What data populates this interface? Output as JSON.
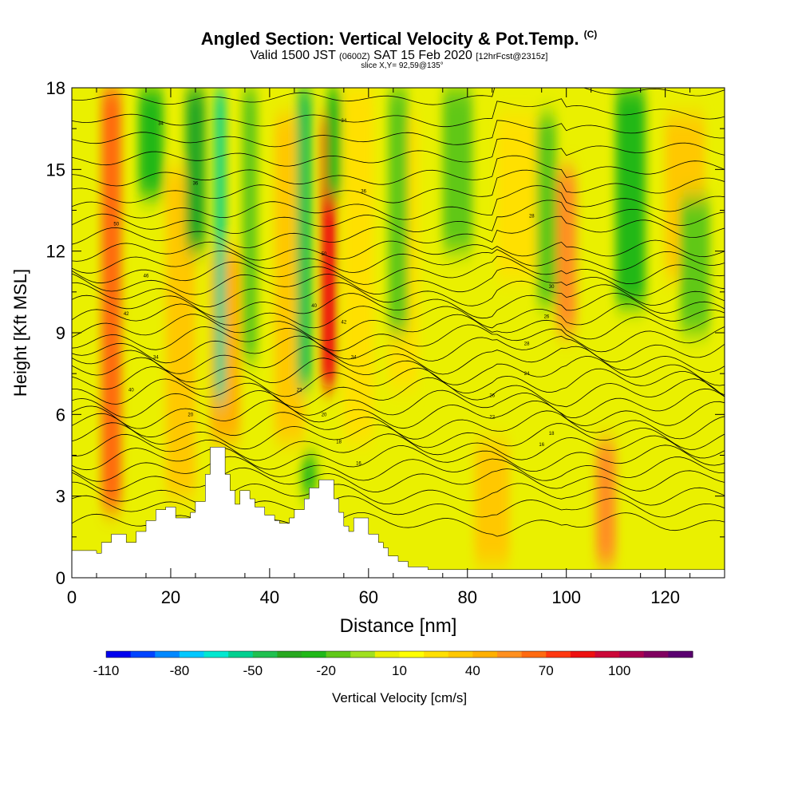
{
  "header": {
    "title": "Angled Section: Vertical Velocity & Pot.Temp.",
    "title_mark": "(C)",
    "subtitle_main": "Valid 1500 JST",
    "subtitle_z": "(0600Z)",
    "subtitle_date": "SAT 15 Feb 2020",
    "subtitle_fcst": "[12hrFcst@2315z]",
    "slice": "slice X,Y= 92,59@135°"
  },
  "chart_data": {
    "type": "heatmap",
    "xlabel": "Distance [nm]",
    "ylabel": "Height [Kft MSL]",
    "xlim": [
      0,
      132
    ],
    "ylim": [
      0,
      18
    ],
    "xticks": [
      0,
      20,
      40,
      60,
      80,
      100,
      120
    ],
    "yticks": [
      0,
      3,
      6,
      9,
      12,
      15,
      18
    ],
    "background_value_cm_s": 5,
    "columns": [
      {
        "x": 8,
        "w": 4,
        "value": 60,
        "y0": 2.5,
        "y1": 18
      },
      {
        "x": 22,
        "w": 6,
        "value": 35,
        "y0": 3,
        "y1": 15
      },
      {
        "x": 31,
        "w": 6,
        "value": 40,
        "y0": 5,
        "y1": 12
      },
      {
        "x": 44,
        "w": 6,
        "value": 30,
        "y0": 5,
        "y1": 17
      },
      {
        "x": 52,
        "w": 3,
        "value": 85,
        "y0": 7,
        "y1": 17
      },
      {
        "x": 58,
        "w": 6,
        "value": 20,
        "y0": 5,
        "y1": 18
      },
      {
        "x": 67,
        "w": 6,
        "value": 20,
        "y0": 7,
        "y1": 17
      },
      {
        "x": 85,
        "w": 7,
        "value": 30,
        "y0": 0.5,
        "y1": 5
      },
      {
        "x": 90,
        "w": 8,
        "value": 25,
        "y0": 11,
        "y1": 17
      },
      {
        "x": 100,
        "w": 4,
        "value": 55,
        "y0": 9,
        "y1": 15
      },
      {
        "x": 108,
        "w": 4,
        "value": 50,
        "y0": 0.5,
        "y1": 5
      },
      {
        "x": 124,
        "w": 8,
        "value": 30,
        "y0": 11,
        "y1": 17
      },
      {
        "x": 16,
        "w": 5,
        "value": -25,
        "y0": 14,
        "y1": 18
      },
      {
        "x": 25,
        "w": 4,
        "value": -35,
        "y0": 12,
        "y1": 18
      },
      {
        "x": 30,
        "w": 2,
        "value": -55,
        "y0": 6.5,
        "y1": 18
      },
      {
        "x": 36,
        "w": 3,
        "value": -20,
        "y0": 8,
        "y1": 18
      },
      {
        "x": 47,
        "w": 3,
        "value": -45,
        "y0": 7,
        "y1": 18
      },
      {
        "x": 53,
        "w": 3,
        "value": -25,
        "y0": 14,
        "y1": 18
      },
      {
        "x": 66,
        "w": 4,
        "value": -20,
        "y0": 9,
        "y1": 18
      },
      {
        "x": 78,
        "w": 6,
        "value": -20,
        "y0": 12,
        "y1": 18
      },
      {
        "x": 96,
        "w": 4,
        "value": -20,
        "y0": 10,
        "y1": 17
      },
      {
        "x": 113,
        "w": 6,
        "value": -25,
        "y0": 10,
        "y1": 18
      },
      {
        "x": 126,
        "w": 6,
        "value": -20,
        "y0": 9,
        "y1": 14
      },
      {
        "x": 48,
        "w": 3,
        "value": -30,
        "y0": 3,
        "y1": 4.5
      }
    ],
    "isentropes": {
      "levels_kft": [
        2.0,
        2.6,
        3.1,
        3.6,
        4.0,
        4.4,
        4.8,
        5.2,
        5.6,
        6.0,
        6.4,
        6.8,
        7.2,
        7.6,
        8.0,
        8.4,
        8.8,
        9.2,
        9.6,
        10.0,
        10.4,
        10.8,
        11.2,
        11.6,
        12.0,
        12.5,
        13.0,
        13.5,
        14.1,
        14.7,
        15.4,
        16.1,
        16.8,
        17.6
      ],
      "labels": [
        {
          "text": "34",
          "x": 18,
          "y": 16.7
        },
        {
          "text": "34",
          "x": 55,
          "y": 16.8
        },
        {
          "text": "36",
          "x": 25,
          "y": 14.5
        },
        {
          "text": "36",
          "x": 59,
          "y": 14.2
        },
        {
          "text": "28",
          "x": 93,
          "y": 13.3
        },
        {
          "text": "50",
          "x": 9,
          "y": 13.0
        },
        {
          "text": "50",
          "x": 51,
          "y": 11.9
        },
        {
          "text": "46",
          "x": 15,
          "y": 11.1
        },
        {
          "text": "30",
          "x": 97,
          "y": 10.7
        },
        {
          "text": "40",
          "x": 49,
          "y": 10.0
        },
        {
          "text": "42",
          "x": 11,
          "y": 9.7
        },
        {
          "text": "26",
          "x": 96,
          "y": 9.6
        },
        {
          "text": "42",
          "x": 55,
          "y": 9.4
        },
        {
          "text": "28",
          "x": 92,
          "y": 8.6
        },
        {
          "text": "34",
          "x": 17,
          "y": 8.1
        },
        {
          "text": "34",
          "x": 57,
          "y": 8.1
        },
        {
          "text": "24",
          "x": 92,
          "y": 7.5
        },
        {
          "text": "40",
          "x": 12,
          "y": 6.9
        },
        {
          "text": "22",
          "x": 46,
          "y": 6.9
        },
        {
          "text": "26",
          "x": 85,
          "y": 6.7
        },
        {
          "text": "20",
          "x": 24,
          "y": 6.0
        },
        {
          "text": "20",
          "x": 51,
          "y": 6.0
        },
        {
          "text": "22",
          "x": 85,
          "y": 5.9
        },
        {
          "text": "18",
          "x": 97,
          "y": 5.3
        },
        {
          "text": "18",
          "x": 54,
          "y": 5.0
        },
        {
          "text": "16",
          "x": 95,
          "y": 4.9
        },
        {
          "text": "16",
          "x": 58,
          "y": 4.2
        }
      ]
    },
    "terrain": [
      [
        0,
        1
      ],
      [
        5,
        1
      ],
      [
        5,
        0.9
      ],
      [
        6,
        0.9
      ],
      [
        6,
        1.3
      ],
      [
        8,
        1.3
      ],
      [
        8,
        1.6
      ],
      [
        11,
        1.6
      ],
      [
        11,
        1.3
      ],
      [
        13,
        1.3
      ],
      [
        13,
        1.7
      ],
      [
        15,
        1.7
      ],
      [
        15,
        2.1
      ],
      [
        17,
        2.1
      ],
      [
        17,
        2.5
      ],
      [
        19,
        2.5
      ],
      [
        19,
        2.6
      ],
      [
        21,
        2.6
      ],
      [
        21,
        2.2
      ],
      [
        24,
        2.2
      ],
      [
        24,
        2.4
      ],
      [
        25,
        2.4
      ],
      [
        25,
        2.8
      ],
      [
        27,
        2.8
      ],
      [
        27,
        3.8
      ],
      [
        28,
        3.8
      ],
      [
        28,
        4.8
      ],
      [
        31,
        4.8
      ],
      [
        31,
        3.8
      ],
      [
        32,
        3.8
      ],
      [
        32,
        3.2
      ],
      [
        33,
        3.2
      ],
      [
        33,
        2.7
      ],
      [
        34,
        2.7
      ],
      [
        34,
        3.2
      ],
      [
        36,
        3.2
      ],
      [
        36,
        2.9
      ],
      [
        37,
        2.9
      ],
      [
        37,
        2.6
      ],
      [
        39,
        2.6
      ],
      [
        39,
        2.3
      ],
      [
        41,
        2.3
      ],
      [
        41,
        2.1
      ],
      [
        42,
        2.1
      ],
      [
        42,
        2.0
      ],
      [
        44,
        2.0
      ],
      [
        44,
        2.2
      ],
      [
        45,
        2.2
      ],
      [
        45,
        2.5
      ],
      [
        47,
        2.5
      ],
      [
        47,
        2.9
      ],
      [
        48,
        2.9
      ],
      [
        48,
        3.3
      ],
      [
        50,
        3.3
      ],
      [
        50,
        3.6
      ],
      [
        53,
        3.6
      ],
      [
        53,
        2.9
      ],
      [
        54,
        2.9
      ],
      [
        54,
        2.4
      ],
      [
        55,
        2.4
      ],
      [
        55,
        1.9
      ],
      [
        56,
        1.9
      ],
      [
        56,
        1.7
      ],
      [
        57,
        1.7
      ],
      [
        57,
        2.2
      ],
      [
        60,
        2.2
      ],
      [
        60,
        1.6
      ],
      [
        62,
        1.6
      ],
      [
        62,
        1.3
      ],
      [
        63,
        1.3
      ],
      [
        63,
        1.1
      ],
      [
        64,
        1.1
      ],
      [
        64,
        0.8
      ],
      [
        66,
        0.8
      ],
      [
        66,
        0.6
      ],
      [
        68,
        0.6
      ],
      [
        68,
        0.4
      ],
      [
        72,
        0.4
      ],
      [
        72,
        0.3
      ],
      [
        132,
        0.3
      ]
    ],
    "colorbar": {
      "title": "Vertical Velocity [cm/s]",
      "tick_labels": [
        "-110",
        "-80",
        "-50",
        "-20",
        "10",
        "40",
        "70",
        "100"
      ],
      "bin_width": 10,
      "colors": [
        "#0000ee",
        "#0044ff",
        "#0088ff",
        "#00c8ff",
        "#00e8d0",
        "#00d090",
        "#20c050",
        "#28a820",
        "#20b818",
        "#60c818",
        "#a0e020",
        "#eaf000",
        "#ffff00",
        "#ffe000",
        "#ffc800",
        "#ffb000",
        "#ff9020",
        "#ff6a10",
        "#ff3810",
        "#ee1010",
        "#cc0838",
        "#a80050",
        "#800060",
        "#5a0070"
      ]
    }
  }
}
